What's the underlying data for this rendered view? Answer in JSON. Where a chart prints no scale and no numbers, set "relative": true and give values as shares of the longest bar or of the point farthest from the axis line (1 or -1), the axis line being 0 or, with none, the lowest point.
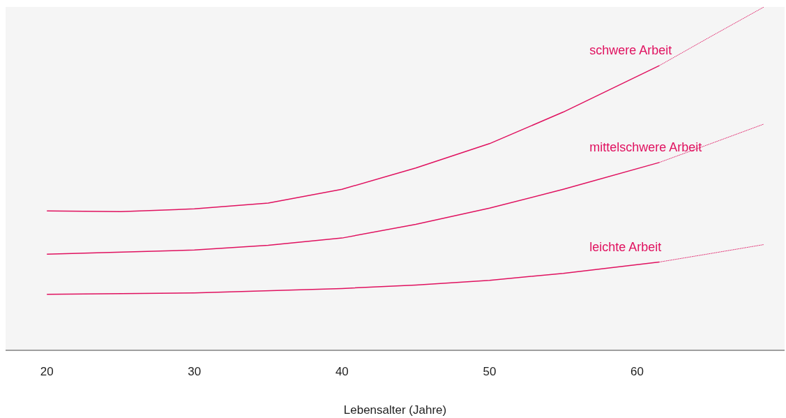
{
  "chart_data": {
    "type": "line",
    "relative": true,
    "xlabel": "Lebensalter (Jahre)",
    "xlim": [
      17.2,
      70
    ],
    "xticks": [
      20,
      30,
      40,
      50,
      60
    ],
    "series": [
      {
        "name": "schwere Arbeit",
        "color": "#e0115f",
        "x": [
          20,
          25,
          30,
          35,
          40,
          45,
          50,
          55,
          61.5
        ],
        "values": [
          0.406,
          0.404,
          0.412,
          0.429,
          0.469,
          0.531,
          0.602,
          0.694,
          0.829
        ]
      },
      {
        "color": "#e0115f",
        "line_style": "dotted",
        "x": [
          61.5,
          65,
          68.6
        ],
        "values": [
          0.829,
          0.914,
          1
        ]
      },
      {
        "name": "mittelschwere Arbeit",
        "color": "#e0115f",
        "x": [
          20,
          30,
          35,
          40,
          45,
          50,
          55,
          61.5
        ],
        "values": [
          0.28,
          0.292,
          0.306,
          0.327,
          0.367,
          0.414,
          0.469,
          0.547
        ]
      },
      {
        "color": "#e0115f",
        "line_style": "dotted",
        "x": [
          61.5,
          65,
          68.6
        ],
        "values": [
          0.547,
          0.602,
          0.659
        ]
      },
      {
        "name": "leichte Arbeit",
        "color": "#e0115f",
        "x": [
          20,
          30,
          40,
          45,
          50,
          55,
          61.5
        ],
        "values": [
          0.163,
          0.167,
          0.18,
          0.19,
          0.204,
          0.224,
          0.257
        ]
      },
      {
        "color": "#e0115f",
        "line_style": "dotted",
        "x": [
          61.5,
          65,
          68.6
        ],
        "values": [
          0.257,
          0.282,
          0.308
        ]
      }
    ]
  }
}
